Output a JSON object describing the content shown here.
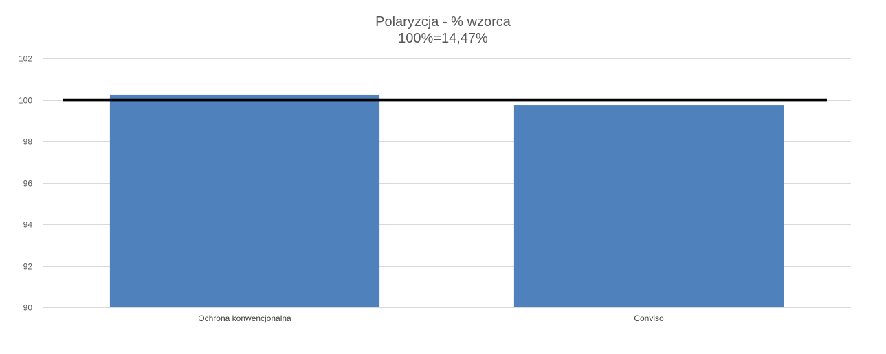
{
  "chart": {
    "title": "Polaryzcja - % wzorca",
    "subtitle": "100%=14,47%"
  },
  "chart_data": {
    "type": "bar",
    "title": "Polaryzcja - % wzorca",
    "subtitle": "100%=14,47%",
    "categories": [
      "Ochrona konwencjonalna",
      "Conviso"
    ],
    "values": [
      100.25,
      99.75
    ],
    "xlabel": "",
    "ylabel": "",
    "ylim": [
      90,
      102
    ],
    "yticks": [
      90,
      92,
      94,
      96,
      98,
      100,
      102
    ],
    "reference_line": 100,
    "grid": true,
    "legend": "none",
    "colors": {
      "bar": "#4f81bd",
      "reference_line": "#000000",
      "grid": "#d9d9d9"
    }
  }
}
